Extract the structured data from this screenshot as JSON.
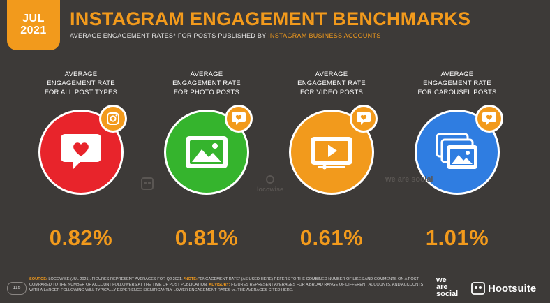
{
  "header": {
    "month": "JUL",
    "year": "2021",
    "title": "INSTAGRAM ENGAGEMENT BENCHMARKS",
    "subtitle_main": "AVERAGE ENGAGEMENT RATES* FOR POSTS PUBLISHED BY ",
    "subtitle_highlight": "INSTAGRAM BUSINESS ACCOUNTS"
  },
  "metrics": [
    {
      "label_lines": [
        "AVERAGE",
        "ENGAGEMENT RATE",
        "FOR ALL POST TYPES"
      ],
      "value": "0.82%",
      "color": "#e8242b",
      "icon": "heart-speech-icon",
      "badge_icon": "instagram-icon"
    },
    {
      "label_lines": [
        "AVERAGE",
        "ENGAGEMENT RATE",
        "FOR PHOTO POSTS"
      ],
      "value": "0.81%",
      "color": "#35b42d",
      "icon": "photo-icon",
      "badge_icon": "heart-speech-icon"
    },
    {
      "label_lines": [
        "AVERAGE",
        "ENGAGEMENT RATE",
        "FOR VIDEO POSTS"
      ],
      "value": "0.61%",
      "color": "#f29a1c",
      "icon": "video-play-icon",
      "badge_icon": "heart-speech-icon"
    },
    {
      "label_lines": [
        "AVERAGE",
        "ENGAGEMENT RATE",
        "FOR CAROUSEL POSTS"
      ],
      "value": "1.01%",
      "color": "#2f7de1",
      "icon": "carousel-icon",
      "badge_icon": "heart-speech-icon"
    }
  ],
  "watermarks": [
    "locowise",
    "we are social"
  ],
  "footer": {
    "page_number": "115",
    "source_label": "SOURCE:",
    "source_text": " LOCOWISE (JUL 2021). FIGURES REPRESENT AVERAGES FOR Q2 2021. ",
    "note_label": "*NOTE:",
    "note_text": " \"ENGAGEMENT RATE\" (AS USED HERE) REFERS TO THE COMBINED NUMBER OF LIKES AND COMMENTS ON A POST COMPARED TO THE NUMBER OF ACCOUNT FOLLOWERS AT THE TIME OF POST PUBLICATION. ",
    "advisory_label": "ADVISORY:",
    "advisory_text": " FIGURES REPRESENT AVERAGES FOR A BROAD RANGE OF DIFFERENT ACCOUNTS, AND ACCOUNTS WITH A LARGER FOLLOWING WILL TYPICALLY EXPERIENCE SIGNIFICANTLY LOWER ENGAGEMENT RATES vs. THE AVERAGES CITED HERE.",
    "wearesocial_lines": [
      "we",
      "are",
      "social"
    ],
    "hootsuite": "Hootsuite"
  },
  "colors": {
    "accent": "#f29a1c",
    "background": "#3d3a38"
  }
}
